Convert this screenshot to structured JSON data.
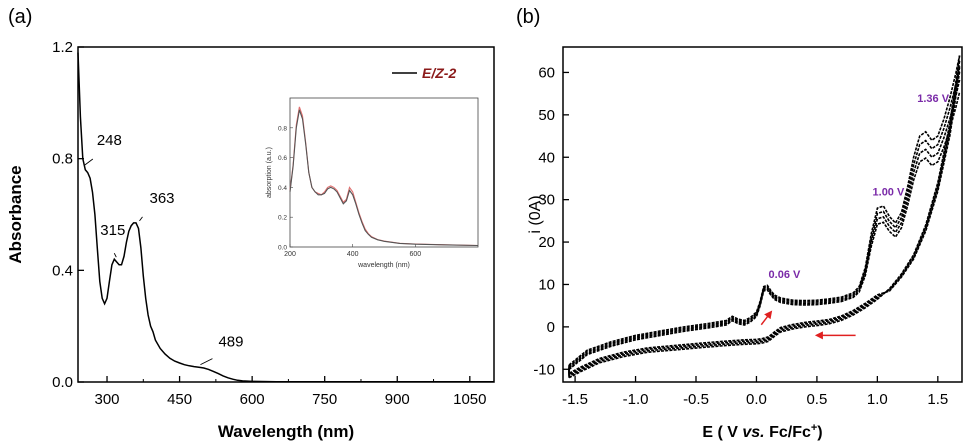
{
  "chart_data": [
    {
      "panel_label": "(a)",
      "type": "line",
      "xlabel": "Wavelength (nm)",
      "ylabel": "Absorbance",
      "xlim": [
        240,
        1100
      ],
      "ylim": [
        0,
        1.2
      ],
      "xticks": [
        "300",
        "450",
        "600",
        "750",
        "900",
        "1050"
      ],
      "xtick_values": [
        300,
        450,
        600,
        750,
        900,
        1050
      ],
      "yticks": [
        "0.0",
        "0.4",
        "0.8",
        "1.2"
      ],
      "ytick_values": [
        0,
        0.4,
        0.8,
        1.2
      ],
      "legend": {
        "label": "E/Z-2",
        "placement": "top-right",
        "color": "#8b1a1a"
      },
      "series": [
        {
          "color": "#000000",
          "x": [
            240,
            245,
            250,
            255,
            260,
            265,
            270,
            275,
            280,
            285,
            290,
            295,
            300,
            305,
            310,
            315,
            320,
            325,
            330,
            335,
            340,
            345,
            350,
            355,
            360,
            365,
            370,
            375,
            380,
            385,
            390,
            395,
            400,
            410,
            420,
            430,
            440,
            450,
            460,
            470,
            480,
            490,
            500,
            510,
            520,
            530,
            540,
            550,
            560,
            570,
            580,
            600,
            650,
            700,
            800,
            900,
            1000,
            1100
          ],
          "y": [
            1.18,
            0.95,
            0.8,
            0.76,
            0.75,
            0.73,
            0.68,
            0.6,
            0.48,
            0.36,
            0.3,
            0.28,
            0.3,
            0.36,
            0.42,
            0.44,
            0.43,
            0.42,
            0.42,
            0.45,
            0.5,
            0.54,
            0.56,
            0.57,
            0.57,
            0.55,
            0.48,
            0.38,
            0.3,
            0.24,
            0.2,
            0.18,
            0.15,
            0.12,
            0.1,
            0.085,
            0.075,
            0.068,
            0.062,
            0.058,
            0.055,
            0.053,
            0.05,
            0.045,
            0.038,
            0.03,
            0.022,
            0.015,
            0.01,
            0.006,
            0.004,
            0.002,
            0.001,
            0.001,
            0.001,
            0.001,
            0.001,
            0.001
          ]
        }
      ],
      "annotations": [
        {
          "text": "248",
          "x": 250,
          "y": 0.77
        },
        {
          "text": "315",
          "x": 315,
          "y": 0.44
        },
        {
          "text": "363",
          "x": 363,
          "y": 0.57
        },
        {
          "text": "489",
          "x": 489,
          "y": 0.055
        }
      ],
      "inset": {
        "xlabel": "wavelength  (nm)",
        "ylabel": "absorption (a.u.)",
        "xlim": [
          200,
          800
        ],
        "ylim": [
          0,
          1.0
        ],
        "xticks": [
          "200",
          "400",
          "600"
        ],
        "xtick_values": [
          200,
          400,
          600
        ],
        "yticks": [
          "0.0",
          "0.2",
          "0.4",
          "0.6",
          "0.8"
        ],
        "ytick_values": [
          0,
          0.2,
          0.4,
          0.6,
          0.8
        ],
        "series": [
          {
            "color": "#e07070",
            "x": [
              200,
              210,
              220,
              230,
              240,
              250,
              260,
              270,
              280,
              290,
              300,
              310,
              320,
              330,
              340,
              350,
              360,
              370,
              380,
              390,
              400,
              410,
              420,
              430,
              440,
              450,
              460,
              480,
              500,
              550,
              600,
              700,
              800
            ],
            "y": [
              0.38,
              0.55,
              0.82,
              0.94,
              0.88,
              0.7,
              0.5,
              0.4,
              0.37,
              0.36,
              0.35,
              0.37,
              0.4,
              0.41,
              0.4,
              0.38,
              0.34,
              0.3,
              0.32,
              0.4,
              0.37,
              0.3,
              0.23,
              0.17,
              0.12,
              0.09,
              0.07,
              0.05,
              0.04,
              0.025,
              0.02,
              0.015,
              0.01
            ]
          },
          {
            "color": "#555555",
            "x": [
              200,
              210,
              220,
              230,
              240,
              250,
              260,
              270,
              280,
              290,
              300,
              310,
              320,
              330,
              340,
              350,
              360,
              370,
              380,
              390,
              400,
              410,
              420,
              430,
              440,
              450,
              460,
              480,
              500,
              550,
              600,
              700,
              800
            ],
            "y": [
              0.37,
              0.54,
              0.8,
              0.92,
              0.86,
              0.69,
              0.5,
              0.4,
              0.37,
              0.35,
              0.35,
              0.36,
              0.39,
              0.4,
              0.39,
              0.37,
              0.33,
              0.29,
              0.31,
              0.38,
              0.35,
              0.29,
              0.22,
              0.16,
              0.11,
              0.085,
              0.065,
              0.048,
              0.038,
              0.024,
              0.019,
              0.014,
              0.01
            ]
          }
        ]
      }
    },
    {
      "panel_label": "(b)",
      "type": "line",
      "xlabel": "E ( V vs. Fc/Fc⁺)",
      "xlabel_parts": [
        "E ( V ",
        "vs.",
        " Fc/Fc",
        "+",
        ")"
      ],
      "ylabel": "i (0A)",
      "xlim": [
        -1.6,
        1.7
      ],
      "ylim": [
        -13,
        66
      ],
      "xticks": [
        "-1.5",
        "-1.0",
        "-0.5",
        "0.0",
        "0.5",
        "1.0",
        "1.5"
      ],
      "xtick_values": [
        -1.5,
        -1.0,
        -0.5,
        0.0,
        0.5,
        1.0,
        1.5
      ],
      "yticks": [
        "-10",
        "0",
        "10",
        "20",
        "30",
        "40",
        "50",
        "60"
      ],
      "ytick_values": [
        -10,
        0,
        10,
        20,
        30,
        40,
        50,
        60
      ],
      "annotations": [
        {
          "text": "0.06 V",
          "x": 0.1,
          "y": 11.5,
          "color": "#7a2aa8"
        },
        {
          "text": "1.00 V",
          "x": 0.96,
          "y": 31,
          "color": "#7a2aa8"
        },
        {
          "text": "1.36 V",
          "x": 1.33,
          "y": 53,
          "color": "#7a2aa8"
        }
      ],
      "arrows": [
        {
          "x1": 0.04,
          "y1": 0.5,
          "x2": 0.12,
          "y2": 3.5,
          "color": "#e02020"
        },
        {
          "x1": 0.82,
          "y1": -2,
          "x2": 0.5,
          "y2": -2,
          "color": "#e02020"
        }
      ],
      "cycles": 4,
      "forward": {
        "x": [
          -1.55,
          -1.4,
          -1.2,
          -1.0,
          -0.8,
          -0.6,
          -0.4,
          -0.25,
          -0.2,
          -0.15,
          -0.1,
          -0.05,
          0.0,
          0.03,
          0.06,
          0.09,
          0.12,
          0.15,
          0.2,
          0.3,
          0.4,
          0.5,
          0.6,
          0.7,
          0.8,
          0.85,
          0.9,
          0.95,
          1.0,
          1.05,
          1.1,
          1.15,
          1.2,
          1.25,
          1.3,
          1.35,
          1.4,
          1.45,
          1.5,
          1.55,
          1.6,
          1.65,
          1.68
        ],
        "y": [
          -9,
          -5.5,
          -3.5,
          -2,
          -1,
          0,
          0.8,
          1.5,
          2.5,
          1.8,
          1.5,
          2.2,
          3.5,
          6,
          9.5,
          9.8,
          8.5,
          7.5,
          6.8,
          6.3,
          6.2,
          6.3,
          6.6,
          7,
          8,
          9.5,
          14,
          22,
          28,
          28.5,
          26,
          24.5,
          27,
          33,
          40,
          45,
          46,
          44,
          45,
          49,
          54,
          60,
          64
        ]
      },
      "reverse": {
        "x": [
          1.68,
          1.6,
          1.5,
          1.4,
          1.3,
          1.2,
          1.1,
          1.0,
          0.9,
          0.8,
          0.7,
          0.6,
          0.5,
          0.4,
          0.3,
          0.2,
          0.15,
          0.1,
          0.05,
          0.0,
          -0.1,
          -0.2,
          -0.3,
          -0.5,
          -0.7,
          -0.9,
          -1.1,
          -1.3,
          -1.45,
          -1.55
        ],
        "y": [
          64,
          48,
          34,
          24,
          17,
          12.5,
          9,
          6.5,
          4.5,
          2.8,
          1.5,
          0.7,
          0.3,
          0,
          -0.5,
          -1.2,
          -2.2,
          -3.4,
          -3.8,
          -4,
          -4.1,
          -4.3,
          -4.5,
          -5,
          -5.5,
          -6,
          -7,
          -8.5,
          -10.5,
          -12
        ]
      }
    }
  ]
}
